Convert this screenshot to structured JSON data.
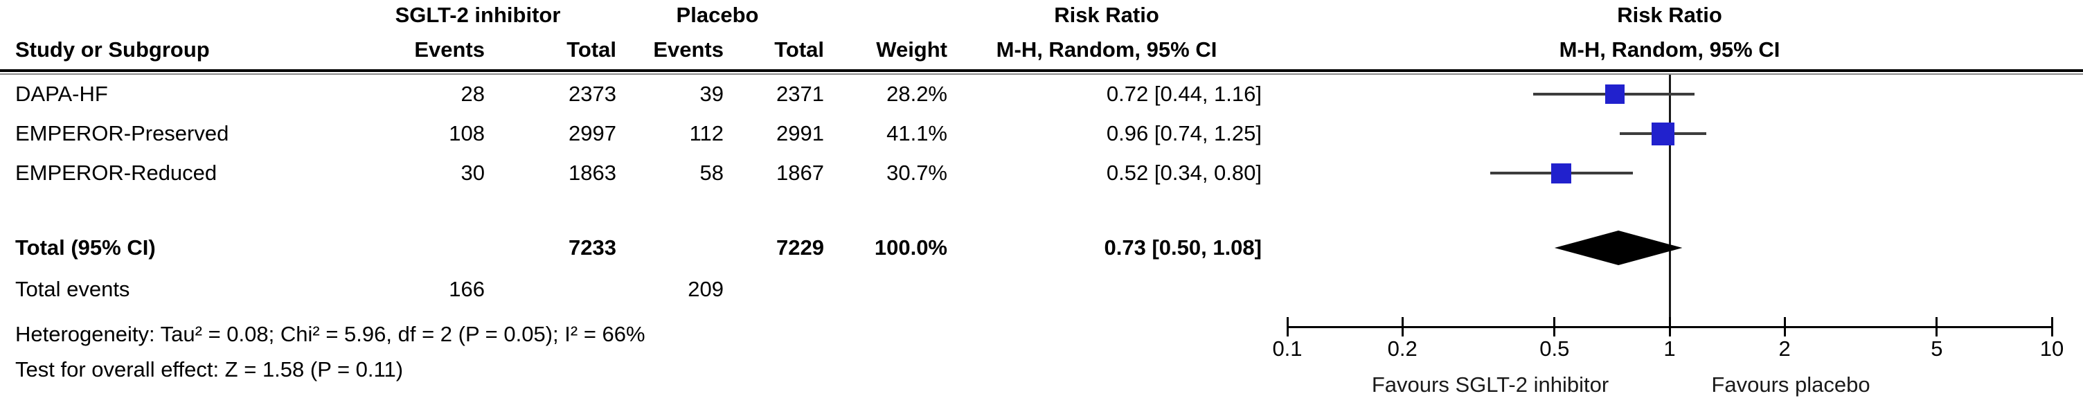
{
  "header": {
    "study_col": "Study or Subgroup",
    "group1": "SGLT-2 inhibitor",
    "group2": "Placebo",
    "events": "Events",
    "total": "Total",
    "weight": "Weight",
    "risk_ratio": "Risk Ratio",
    "method_ci": "M-H, Random, 95% CI"
  },
  "studies": [
    {
      "name": "DAPA-HF",
      "exp_events": "28",
      "exp_total": "2373",
      "ctl_events": "39",
      "ctl_total": "2371",
      "weight": "28.2%",
      "rr_ci": "0.72 [0.44, 1.16]"
    },
    {
      "name": "EMPEROR-Preserved",
      "exp_events": "108",
      "exp_total": "2997",
      "ctl_events": "112",
      "ctl_total": "2991",
      "weight": "41.1%",
      "rr_ci": "0.96 [0.74, 1.25]"
    },
    {
      "name": "EMPEROR-Reduced",
      "exp_events": "30",
      "exp_total": "1863",
      "ctl_events": "58",
      "ctl_total": "1867",
      "weight": "30.7%",
      "rr_ci": "0.52 [0.34, 0.80]"
    }
  ],
  "total_row": {
    "label": "Total (95% CI)",
    "exp_total": "7233",
    "ctl_total": "7229",
    "weight": "100.0%",
    "rr_ci": "0.73 [0.50, 1.08]"
  },
  "total_events_row": {
    "label": "Total events",
    "exp_events": "166",
    "ctl_events": "209"
  },
  "stats": {
    "heterogeneity": "Heterogeneity: Tau² = 0.08; Chi² = 5.96, df = 2 (P = 0.05); I² = 66%",
    "overall_effect": "Test for overall effect: Z = 1.58 (P = 0.11)"
  },
  "chart_data": {
    "type": "scatter",
    "subtype": "forest-plot",
    "title": "Risk Ratio",
    "method": "M-H, Random, 95% CI",
    "x_scale": "log",
    "x_range": [
      0.1,
      10
    ],
    "x_ticks": [
      0.1,
      0.2,
      0.5,
      1,
      2,
      5,
      10
    ],
    "null_line": 1,
    "series": [
      {
        "name": "DAPA-HF",
        "rr": 0.72,
        "ci_low": 0.44,
        "ci_high": 1.16,
        "weight_pct": 28.2
      },
      {
        "name": "EMPEROR-Preserved",
        "rr": 0.96,
        "ci_low": 0.74,
        "ci_high": 1.25,
        "weight_pct": 41.1
      },
      {
        "name": "EMPEROR-Reduced",
        "rr": 0.52,
        "ci_low": 0.34,
        "ci_high": 0.8,
        "weight_pct": 30.7
      }
    ],
    "total": {
      "rr": 0.73,
      "ci_low": 0.5,
      "ci_high": 1.08
    },
    "favours_left": "Favours SGLT-2 inhibitor",
    "favours_right": "Favours placebo",
    "marker_color": "#2121cd",
    "ci_line_color": "#3d3d3d",
    "diamond_color": "#000000",
    "legend_position": "bottom",
    "grid": false
  }
}
